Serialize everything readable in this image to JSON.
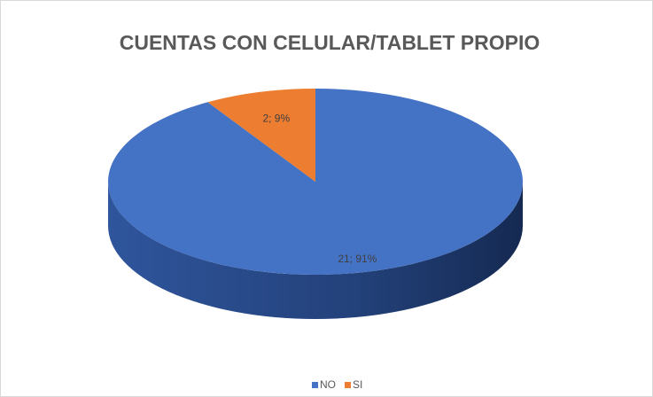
{
  "chart_data": {
    "type": "pie",
    "title": "CUENTAS CON CELULAR/TABLET PROPIO",
    "categories": [
      "NO",
      "SI"
    ],
    "values": [
      21,
      2
    ],
    "value_labels": [
      "21; 91%",
      "2; 9%"
    ],
    "colors": [
      "#4472c4",
      "#ed7d31"
    ],
    "legend": "bottom"
  }
}
